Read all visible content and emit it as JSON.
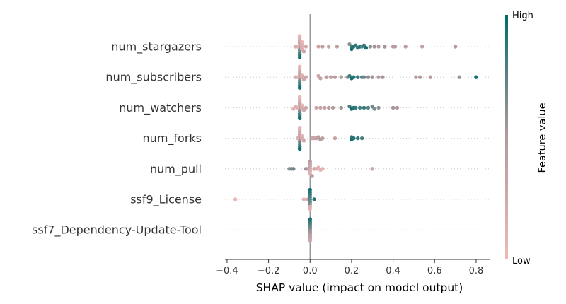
{
  "chart_data": {
    "type": "scatter",
    "subtype": "shap-beeswarm-summary",
    "xlabel": "SHAP value (impact on model output)",
    "xlim": [
      -0.41,
      0.865
    ],
    "xticks": [
      -0.4,
      -0.2,
      0.0,
      0.2,
      0.4,
      0.6,
      0.8
    ],
    "xtick_labels": [
      "−0.4",
      "−0.2",
      "0.0",
      "0.2",
      "0.4",
      "0.6",
      "0.8"
    ],
    "colorbar": {
      "label": "Feature value",
      "high_label": "High",
      "low_label": "Low",
      "high_color": "#006b6b",
      "low_color": "#f0b9b9"
    },
    "features": [
      {
        "name": "num_stargazers",
        "points": [
          [
            -0.05,
            0.05
          ],
          [
            -0.05,
            0.15
          ],
          [
            -0.05,
            0.25
          ],
          [
            -0.05,
            0.35
          ],
          [
            -0.05,
            0.45
          ],
          [
            -0.05,
            0.55
          ],
          [
            -0.05,
            0.65
          ],
          [
            -0.05,
            0.75
          ],
          [
            -0.05,
            0.85
          ],
          [
            -0.05,
            0.95
          ],
          [
            -0.04,
            0.05
          ],
          [
            -0.04,
            0.1
          ],
          [
            -0.04,
            0.2
          ],
          [
            -0.04,
            0.15
          ],
          [
            -0.06,
            0.1
          ],
          [
            -0.03,
            0.3
          ],
          [
            -0.07,
            0.2
          ],
          [
            -0.02,
            0.25
          ],
          [
            0.04,
            0.3
          ],
          [
            0.06,
            0.4
          ],
          [
            0.09,
            0.35
          ],
          [
            0.13,
            0.4
          ],
          [
            0.19,
            0.6
          ],
          [
            0.2,
            0.8
          ],
          [
            0.2,
            0.95
          ],
          [
            0.21,
            0.9
          ],
          [
            0.22,
            0.85
          ],
          [
            0.23,
            0.85
          ],
          [
            0.24,
            0.9
          ],
          [
            0.25,
            0.75
          ],
          [
            0.26,
            0.85
          ],
          [
            0.27,
            0.95
          ],
          [
            0.29,
            0.6
          ],
          [
            0.31,
            0.55
          ],
          [
            0.33,
            0.5
          ],
          [
            0.36,
            0.55
          ],
          [
            0.4,
            0.5
          ],
          [
            0.41,
            0.45
          ],
          [
            0.46,
            0.45
          ],
          [
            0.54,
            0.4
          ],
          [
            0.7,
            0.5
          ]
        ]
      },
      {
        "name": "num_subscribers",
        "points": [
          [
            -0.05,
            0.05
          ],
          [
            -0.05,
            0.15
          ],
          [
            -0.05,
            0.25
          ],
          [
            -0.05,
            0.35
          ],
          [
            -0.05,
            0.45
          ],
          [
            -0.05,
            0.55
          ],
          [
            -0.05,
            0.65
          ],
          [
            -0.05,
            0.75
          ],
          [
            -0.05,
            0.85
          ],
          [
            -0.05,
            0.95
          ],
          [
            -0.04,
            0.1
          ],
          [
            -0.04,
            0.2
          ],
          [
            -0.06,
            0.15
          ],
          [
            -0.03,
            0.25
          ],
          [
            -0.07,
            0.2
          ],
          [
            -0.02,
            0.3
          ],
          [
            0.04,
            0.3
          ],
          [
            0.05,
            0.35
          ],
          [
            0.08,
            0.45
          ],
          [
            0.1,
            0.4
          ],
          [
            0.12,
            0.45
          ],
          [
            0.15,
            0.5
          ],
          [
            0.18,
            0.6
          ],
          [
            0.19,
            0.8
          ],
          [
            0.2,
            0.95
          ],
          [
            0.21,
            0.9
          ],
          [
            0.23,
            0.85
          ],
          [
            0.25,
            0.75
          ],
          [
            0.26,
            0.7
          ],
          [
            0.28,
            0.6
          ],
          [
            0.3,
            0.55
          ],
          [
            0.33,
            0.5
          ],
          [
            0.35,
            0.55
          ],
          [
            0.51,
            0.45
          ],
          [
            0.53,
            0.5
          ],
          [
            0.58,
            0.45
          ],
          [
            0.72,
            0.55
          ],
          [
            0.8,
            0.95
          ]
        ]
      },
      {
        "name": "num_watchers",
        "points": [
          [
            -0.05,
            0.05
          ],
          [
            -0.05,
            0.15
          ],
          [
            -0.05,
            0.25
          ],
          [
            -0.05,
            0.35
          ],
          [
            -0.05,
            0.45
          ],
          [
            -0.05,
            0.55
          ],
          [
            -0.05,
            0.65
          ],
          [
            -0.05,
            0.75
          ],
          [
            -0.05,
            0.85
          ],
          [
            -0.05,
            0.95
          ],
          [
            -0.04,
            0.1
          ],
          [
            -0.04,
            0.2
          ],
          [
            -0.06,
            0.15
          ],
          [
            -0.03,
            0.25
          ],
          [
            -0.07,
            0.2
          ],
          [
            -0.08,
            0.1
          ],
          [
            -0.02,
            0.3
          ],
          [
            0.03,
            0.3
          ],
          [
            0.05,
            0.35
          ],
          [
            0.07,
            0.4
          ],
          [
            0.09,
            0.45
          ],
          [
            0.11,
            0.5
          ],
          [
            0.15,
            0.55
          ],
          [
            0.19,
            0.8
          ],
          [
            0.2,
            0.95
          ],
          [
            0.21,
            0.9
          ],
          [
            0.22,
            0.85
          ],
          [
            0.24,
            0.8
          ],
          [
            0.26,
            0.85
          ],
          [
            0.28,
            0.75
          ],
          [
            0.3,
            0.7
          ],
          [
            0.31,
            0.65
          ],
          [
            0.33,
            0.6
          ],
          [
            0.4,
            0.55
          ],
          [
            0.42,
            0.5
          ]
        ]
      },
      {
        "name": "num_forks",
        "points": [
          [
            -0.05,
            0.05
          ],
          [
            -0.05,
            0.15
          ],
          [
            -0.05,
            0.25
          ],
          [
            -0.05,
            0.35
          ],
          [
            -0.05,
            0.45
          ],
          [
            -0.05,
            0.55
          ],
          [
            -0.05,
            0.65
          ],
          [
            -0.05,
            0.75
          ],
          [
            -0.05,
            0.85
          ],
          [
            -0.05,
            0.95
          ],
          [
            -0.04,
            0.1
          ],
          [
            -0.04,
            0.2
          ],
          [
            -0.06,
            0.15
          ],
          [
            -0.03,
            0.25
          ],
          [
            0.01,
            0.3
          ],
          [
            0.02,
            0.35
          ],
          [
            0.03,
            0.4
          ],
          [
            0.04,
            0.45
          ],
          [
            0.05,
            0.5
          ],
          [
            0.06,
            0.4
          ],
          [
            0.12,
            0.35
          ],
          [
            0.2,
            0.85
          ],
          [
            0.2,
            0.95
          ],
          [
            0.21,
            0.9
          ],
          [
            0.23,
            0.85
          ],
          [
            0.25,
            0.8
          ]
        ]
      },
      {
        "name": "num_pull",
        "points": [
          [
            -0.1,
            0.6
          ],
          [
            -0.09,
            0.65
          ],
          [
            -0.08,
            0.7
          ],
          [
            -0.02,
            0.55
          ],
          [
            -0.01,
            0.5
          ],
          [
            0.0,
            0.45
          ],
          [
            0.0,
            0.35
          ],
          [
            0.0,
            0.3
          ],
          [
            0.0,
            0.25
          ],
          [
            0.0,
            0.2
          ],
          [
            0.0,
            0.15
          ],
          [
            0.01,
            0.4
          ],
          [
            0.02,
            0.3
          ],
          [
            0.03,
            0.2
          ],
          [
            0.04,
            0.1
          ],
          [
            0.05,
            0.05
          ],
          [
            0.06,
            0.1
          ],
          [
            0.3,
            0.3
          ]
        ]
      },
      {
        "name": "ssf9_License",
        "points": [
          [
            -0.36,
            0.05
          ],
          [
            -0.03,
            0.1
          ],
          [
            -0.01,
            0.3
          ],
          [
            0.0,
            0.95
          ],
          [
            0.0,
            0.9
          ],
          [
            0.0,
            0.85
          ],
          [
            0.0,
            0.8
          ],
          [
            0.0,
            0.75
          ],
          [
            0.0,
            0.7
          ],
          [
            0.0,
            0.65
          ],
          [
            0.0,
            0.2
          ],
          [
            0.0,
            0.15
          ],
          [
            0.02,
            0.9
          ]
        ]
      },
      {
        "name": "ssf7_Dependency-Update-Tool",
        "points": [
          [
            0.0,
            0.95
          ],
          [
            0.0,
            0.9
          ],
          [
            0.0,
            0.85
          ],
          [
            0.0,
            0.8
          ],
          [
            0.0,
            0.75
          ],
          [
            0.0,
            0.7
          ],
          [
            0.0,
            0.65
          ],
          [
            0.0,
            0.6
          ],
          [
            0.0,
            0.55
          ],
          [
            0.0,
            0.5
          ],
          [
            0.0,
            0.45
          ],
          [
            0.0,
            0.4
          ],
          [
            0.0,
            0.35
          ],
          [
            0.0,
            0.3
          ]
        ]
      }
    ]
  }
}
